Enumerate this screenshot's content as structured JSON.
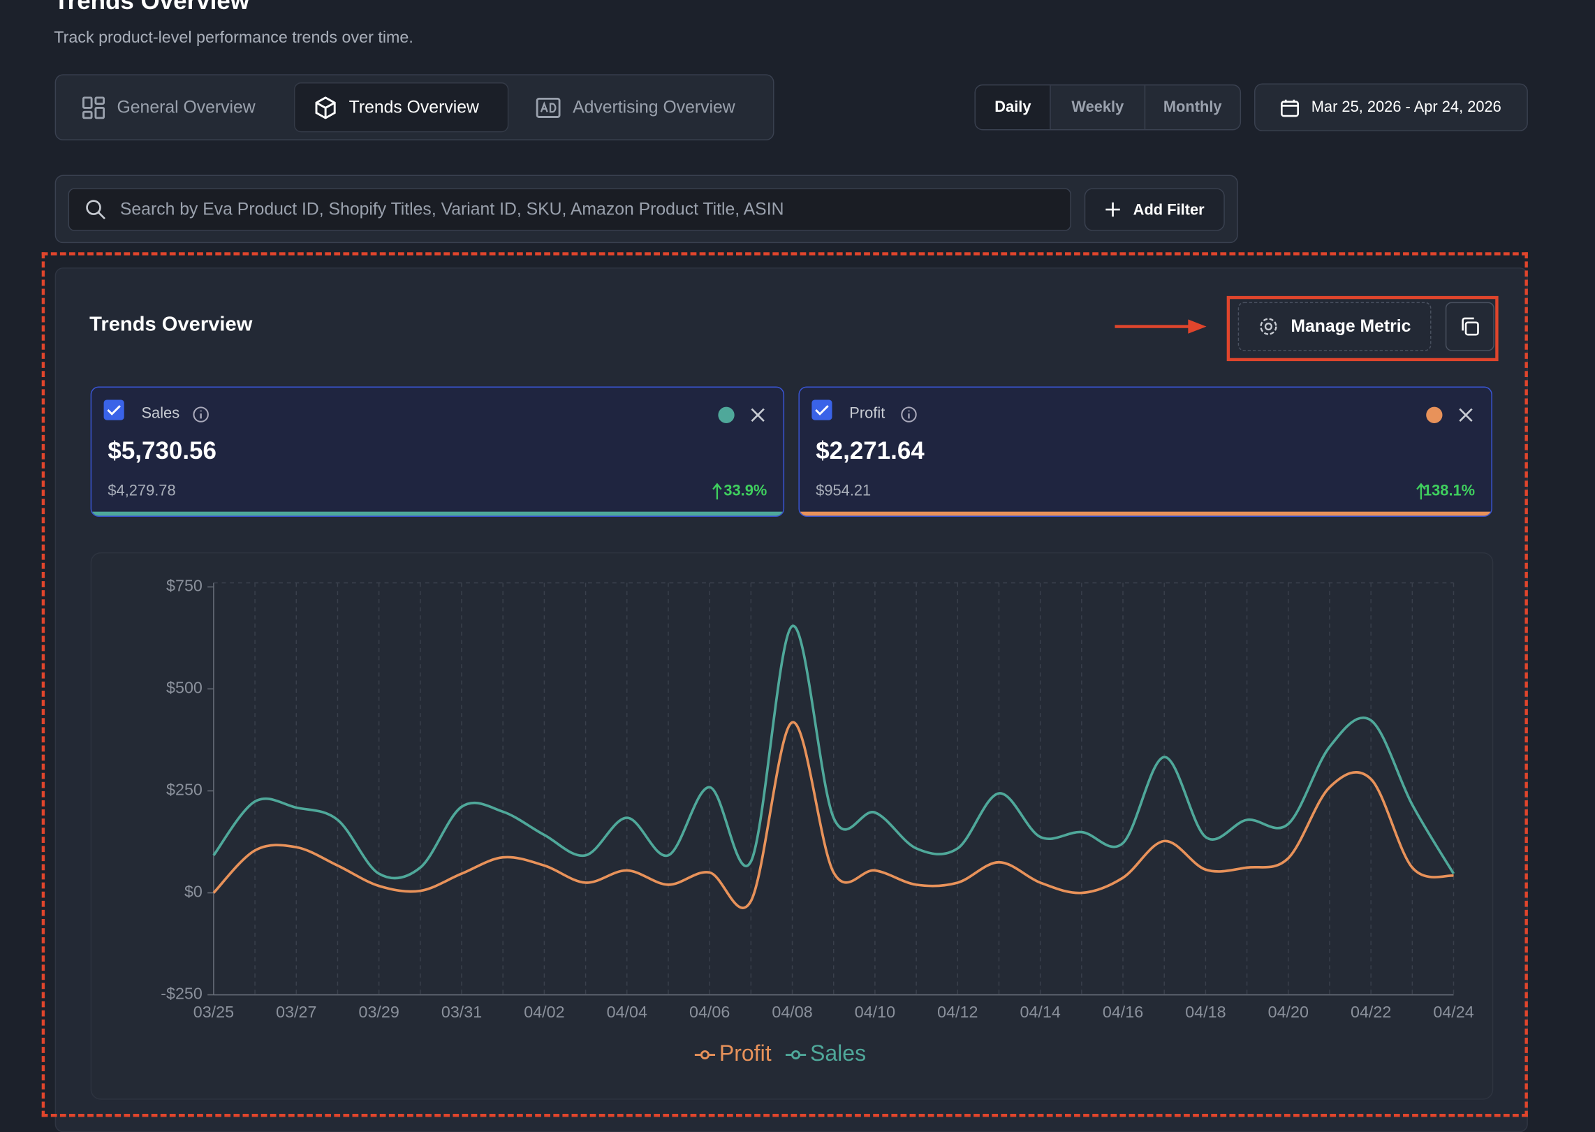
{
  "header": {
    "title": "Trends Overview",
    "subtitle": "Track product-level performance trends over time."
  },
  "tabs": [
    "General Overview",
    "Trends Overview",
    "Advertising Overview"
  ],
  "periods": [
    "Daily",
    "Weekly",
    "Monthly"
  ],
  "date_range": "Mar 25, 2026 - Apr 24, 2026",
  "search_placeholder": "Search by Eva Product ID, Shopify Titles, Variant ID, SKU, Amazon Product Title, ASIN",
  "add_filter": "Add Filter",
  "panel": {
    "title": "Trends Overview",
    "manage_metric": "Manage Metric"
  },
  "metrics": [
    {
      "name": "Sales",
      "value": "$5,730.56",
      "previous": "$4,279.78",
      "change": "33.9%"
    },
    {
      "name": "Profit",
      "value": "$2,271.64",
      "previous": "$954.21",
      "change": "138.1%"
    }
  ],
  "chart_data": {
    "type": "line",
    "categories": [
      "03/25",
      null,
      "03/27",
      null,
      "03/29",
      null,
      "03/31",
      null,
      "04/02",
      null,
      "04/04",
      null,
      "04/06",
      null,
      "04/08",
      null,
      "04/10",
      null,
      "04/12",
      null,
      "04/14",
      null,
      "04/16",
      null,
      "04/18",
      null,
      "04/20",
      null,
      "04/22",
      null,
      "04/24"
    ],
    "series": [
      {
        "name": "Profit",
        "color": "#e8925a",
        "values": [
          0,
          104,
          112,
          67,
          17,
          5,
          47,
          87,
          67,
          25,
          55,
          20,
          50,
          -20,
          418,
          50,
          55,
          20,
          25,
          75,
          25,
          0,
          37,
          127,
          57,
          62,
          85,
          259,
          279,
          62,
          42
        ]
      },
      {
        "name": "Sales",
        "color": "#4fa89a",
        "values": [
          92,
          224,
          209,
          179,
          47,
          62,
          211,
          199,
          142,
          92,
          184,
          92,
          259,
          77,
          654,
          184,
          197,
          109,
          109,
          244,
          137,
          149,
          122,
          333,
          137,
          179,
          169,
          358,
          423,
          216,
          47
        ]
      }
    ],
    "ylim": [
      -250,
      750
    ],
    "yticks": [
      {
        "value": -250,
        "label": "-$250"
      },
      {
        "value": 0,
        "label": "$0"
      },
      {
        "value": 250,
        "label": "$250"
      },
      {
        "value": 500,
        "label": "$500"
      },
      {
        "value": 750,
        "label": "$750"
      }
    ],
    "grid": true,
    "legend": "bottom"
  }
}
